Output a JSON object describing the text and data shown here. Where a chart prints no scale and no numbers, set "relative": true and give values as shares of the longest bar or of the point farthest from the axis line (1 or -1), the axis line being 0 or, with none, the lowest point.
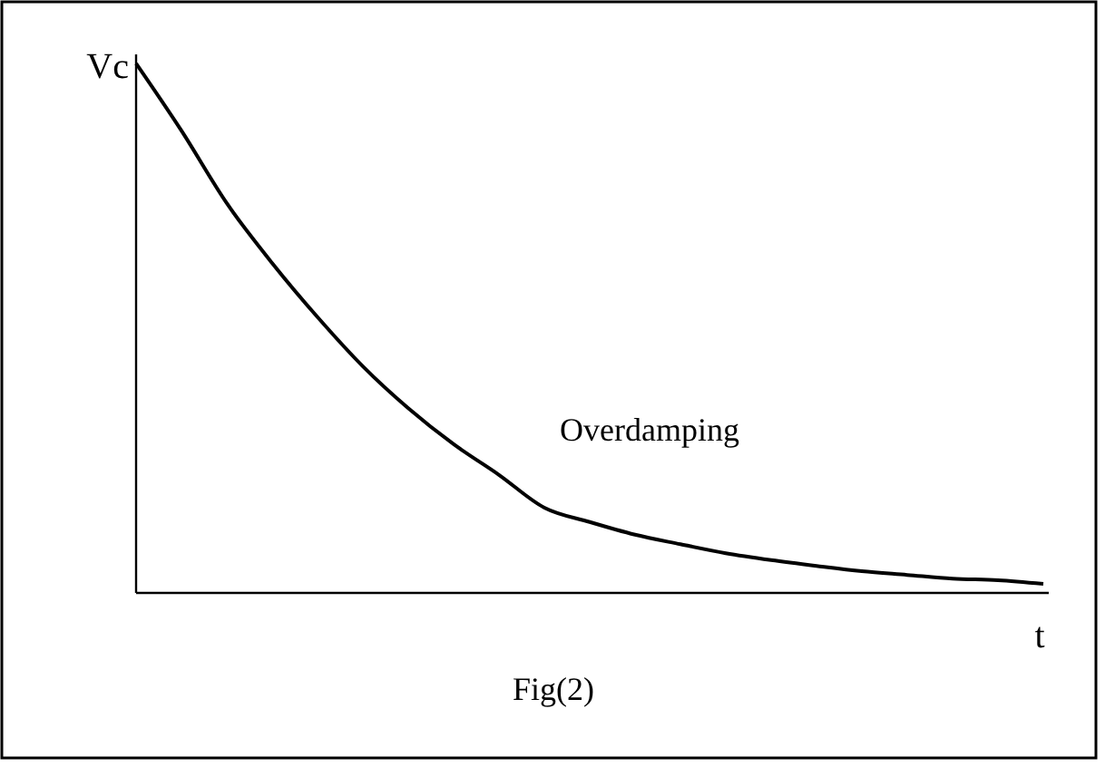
{
  "chart_data": {
    "type": "line",
    "relative": true,
    "ylabel": "Vc",
    "xlabel": "t",
    "annotations": [
      "Overdamping",
      "Fig(2)"
    ],
    "categories": [
      null,
      null,
      null,
      null,
      null,
      null,
      null,
      null,
      null,
      null,
      null,
      null,
      null,
      null,
      null,
      null,
      null,
      null,
      null,
      null,
      null
    ],
    "series": [
      {
        "color": "#000000",
        "values": [
          1.0,
          0.873,
          0.736,
          0.623,
          0.521,
          0.428,
          0.349,
          0.281,
          0.223,
          0.161,
          0.134,
          0.11,
          0.092,
          0.075,
          0.062,
          0.051,
          0.041,
          0.034,
          0.027,
          0.024,
          0.017
        ]
      }
    ],
    "line_style": "solid"
  }
}
